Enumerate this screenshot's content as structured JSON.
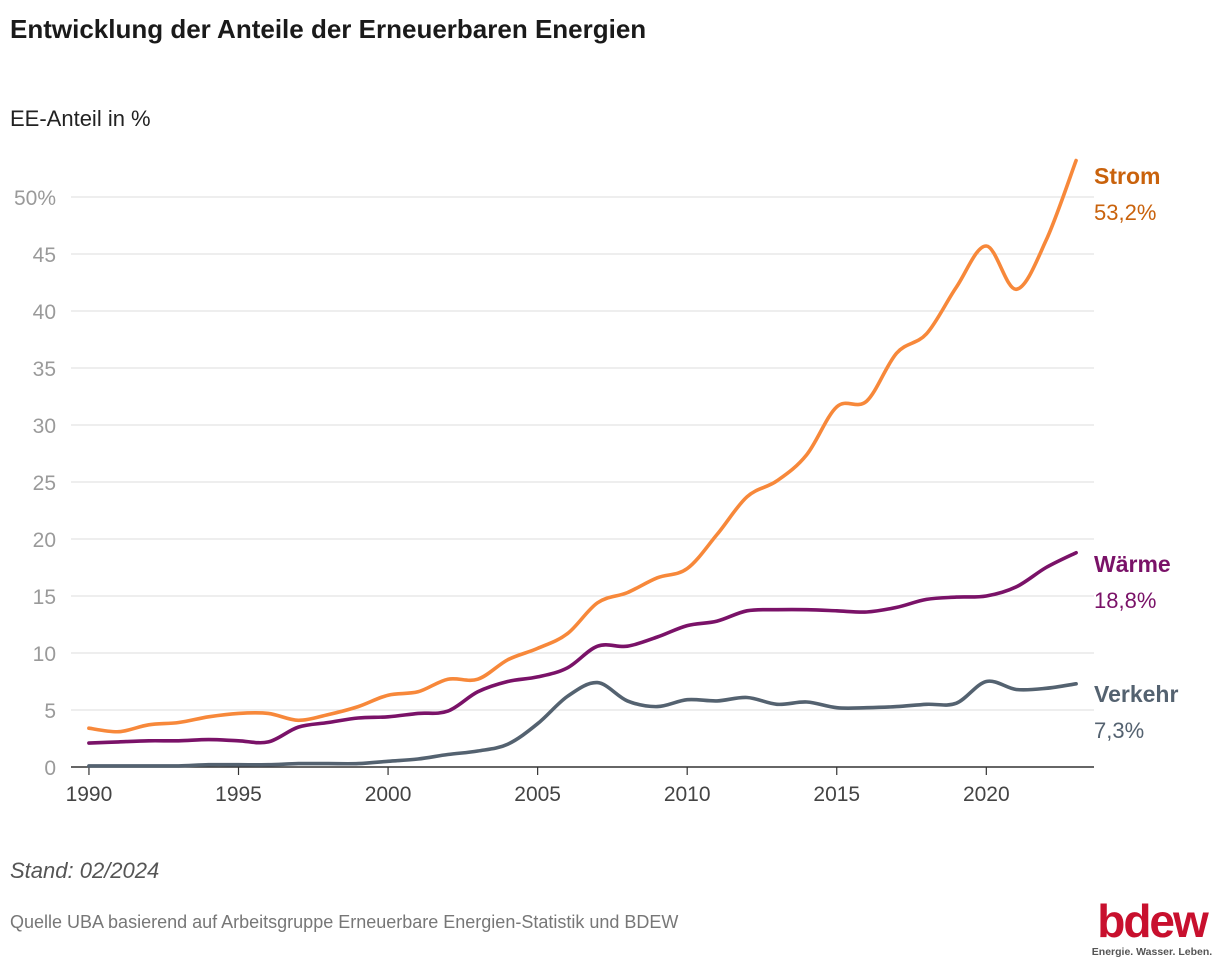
{
  "title": "Entwicklung der Anteile der Erneuerbaren Energien",
  "unit_label": "EE-Anteil in %",
  "footer": {
    "stand": "Stand: 02/2024",
    "source": "Quelle UBA basierend auf Arbeitsgruppe Erneuerbare Energien-Statistik und BDEW"
  },
  "logo": {
    "word": "bdew",
    "tagline": "Energie. Wasser. Leben.",
    "color": "#c8102e"
  },
  "chart_data": {
    "type": "line",
    "x": [
      1990,
      1991,
      1992,
      1993,
      1994,
      1995,
      1996,
      1997,
      1998,
      1999,
      2000,
      2001,
      2002,
      2003,
      2004,
      2005,
      2006,
      2007,
      2008,
      2009,
      2010,
      2011,
      2012,
      2013,
      2014,
      2015,
      2016,
      2017,
      2018,
      2019,
      2020,
      2021,
      2022,
      2023
    ],
    "xlim": [
      1989.4,
      2023.6
    ],
    "ylim": [
      0,
      55
    ],
    "x_ticks": [
      1990,
      1995,
      2000,
      2005,
      2010,
      2015,
      2020
    ],
    "x_tick_labels": [
      "1990",
      "1995",
      "2000",
      "2005",
      "2010",
      "2015",
      "2020"
    ],
    "y_ticks": [
      0,
      5,
      10,
      15,
      20,
      25,
      30,
      35,
      40,
      45,
      50
    ],
    "y_tick_labels": [
      "0",
      "5",
      "10",
      "15",
      "20",
      "25",
      "30",
      "35",
      "40",
      "45",
      "50%"
    ],
    "grid": "horizontal",
    "legend": "direct labels at line ends (right)",
    "series": [
      {
        "name": "Strom",
        "end_label": "53,2%",
        "color": "#f7883a",
        "label_color": "#c9620c",
        "values": [
          3.4,
          3.1,
          3.7,
          3.9,
          4.4,
          4.7,
          4.7,
          4.1,
          4.6,
          5.3,
          6.3,
          6.6,
          7.7,
          7.7,
          9.4,
          10.4,
          11.7,
          14.4,
          15.3,
          16.6,
          17.4,
          20.4,
          23.7,
          25.1,
          27.4,
          31.6,
          32.1,
          36.3,
          38.0,
          42.1,
          45.7,
          41.9,
          46.2,
          53.2
        ]
      },
      {
        "name": "Wärme",
        "end_label": "18,8%",
        "color": "#7a1268",
        "label_color": "#7a1268",
        "values": [
          2.1,
          2.2,
          2.3,
          2.3,
          2.4,
          2.3,
          2.2,
          3.5,
          3.9,
          4.3,
          4.4,
          4.7,
          4.9,
          6.6,
          7.5,
          7.9,
          8.7,
          10.6,
          10.6,
          11.4,
          12.4,
          12.8,
          13.7,
          13.8,
          13.8,
          13.7,
          13.6,
          14.0,
          14.7,
          14.9,
          15.0,
          15.8,
          17.5,
          18.8
        ]
      },
      {
        "name": "Verkehr",
        "end_label": "7,3%",
        "color": "#546270",
        "label_color": "#546270",
        "values": [
          0.1,
          0.1,
          0.1,
          0.1,
          0.2,
          0.2,
          0.2,
          0.3,
          0.3,
          0.3,
          0.5,
          0.7,
          1.1,
          1.4,
          2.0,
          3.8,
          6.2,
          7.4,
          5.8,
          5.3,
          5.9,
          5.8,
          6.1,
          5.5,
          5.7,
          5.2,
          5.2,
          5.3,
          5.5,
          5.6,
          7.5,
          6.8,
          6.9,
          7.3
        ]
      }
    ]
  }
}
